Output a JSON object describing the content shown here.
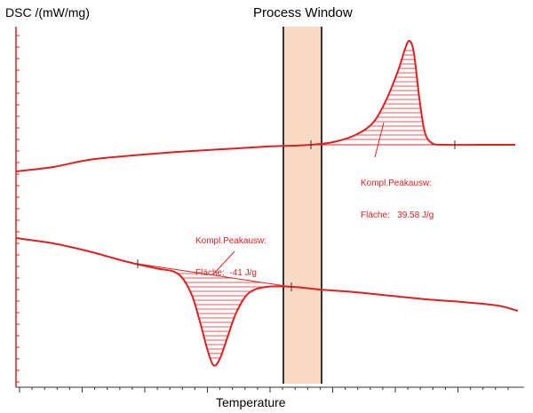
{
  "chart_data": {
    "type": "line",
    "title": "Process Window",
    "xlabel": "Temperature",
    "ylabel": "DSC /(mW/mg)",
    "grid": false,
    "x_ticks_labeled": false,
    "y_ticks_labeled": false,
    "series_color": "#e02020",
    "process_window_color": "#f8d9c6",
    "series": [
      {
        "role": "heating",
        "peak": "exothermic",
        "annotation": {
          "line1": "Kompl.Peakausw:",
          "line2": "Fläche:",
          "value": "39.58 J/g"
        }
      },
      {
        "role": "cooling",
        "peak": "endothermic",
        "annotation": {
          "line1": "Kompl.Peakausw:",
          "line2": "Fläche:",
          "value": "-41 J/g"
        }
      }
    ]
  }
}
